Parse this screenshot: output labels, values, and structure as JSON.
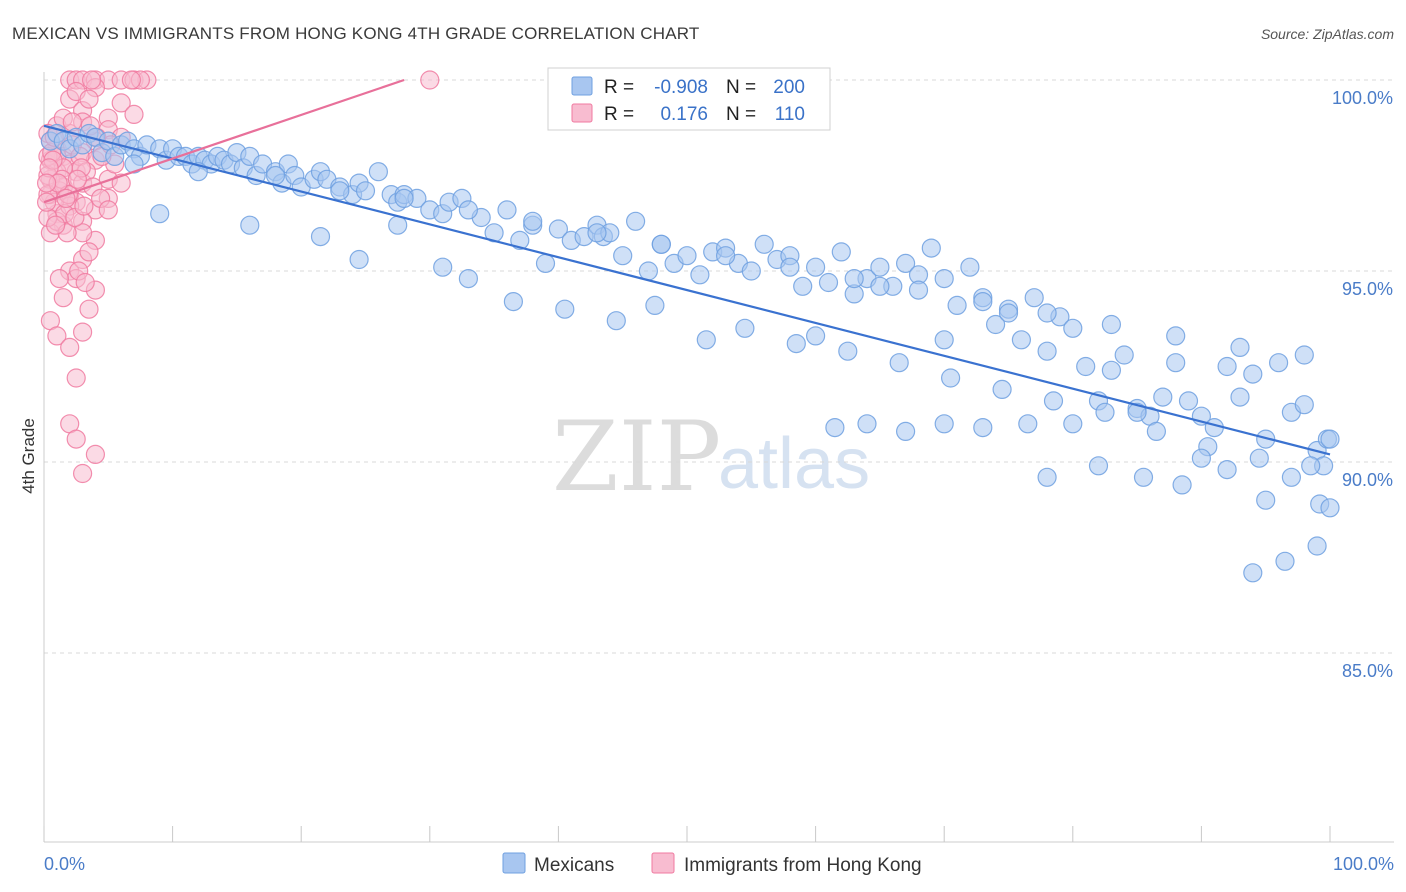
{
  "title": "MEXICAN VS IMMIGRANTS FROM HONG KONG 4TH GRADE CORRELATION CHART",
  "source": "Source: ZipAtlas.com",
  "watermark": {
    "zip": "ZIP",
    "atlas": "atlas"
  },
  "colors": {
    "blue": "#6fa0e0",
    "blue_fill": "#a8c6f0",
    "blue_line": "#3a72d0",
    "pink": "#f07aa0",
    "pink_fill": "#f8bcd0",
    "pink_line": "#e8709a",
    "grid": "#d8d8d8",
    "axis_text": "#4a7cc8"
  },
  "legend_top": {
    "rows": [
      {
        "r_label": "R =",
        "r_value": "-0.908",
        "n_label": "N =",
        "n_value": "200"
      },
      {
        "r_label": "R =",
        "r_value": "0.176",
        "n_label": "N =",
        "n_value": "110"
      }
    ]
  },
  "legend_bottom": {
    "items": [
      "Mexicans",
      "Immigrants from Hong Kong"
    ]
  },
  "chart_data": {
    "type": "scatter",
    "title": "MEXICAN VS IMMIGRANTS FROM HONG KONG 4TH GRADE CORRELATION CHART",
    "xlabel": "",
    "ylabel": "4th Grade",
    "xlim": [
      0,
      100
    ],
    "ylim": [
      80.5,
      100.5
    ],
    "x_tick_labels": [
      "0.0%",
      "100.0%"
    ],
    "y_ticks": [
      100,
      95,
      90,
      85
    ],
    "y_tick_labels": [
      "100.0%",
      "95.0%",
      "90.0%",
      "85.0%"
    ],
    "series": [
      {
        "name": "Mexicans",
        "R": -0.908,
        "N": 200,
        "trend": {
          "x": [
            0,
            100
          ],
          "y": [
            98.8,
            90.2
          ]
        },
        "points": [
          [
            0.5,
            98.4
          ],
          [
            1,
            98.6
          ],
          [
            1.5,
            98.4
          ],
          [
            2,
            98.2
          ],
          [
            2.5,
            98.5
          ],
          [
            3,
            98.3
          ],
          [
            3.5,
            98.6
          ],
          [
            4,
            98.5
          ],
          [
            4.5,
            98.1
          ],
          [
            5,
            98.4
          ],
          [
            5.5,
            98.0
          ],
          [
            6,
            98.3
          ],
          [
            6.5,
            98.4
          ],
          [
            7,
            98.2
          ],
          [
            7.5,
            98.0
          ],
          [
            8,
            98.3
          ],
          [
            9,
            98.2
          ],
          [
            9.5,
            97.9
          ],
          [
            10,
            98.2
          ],
          [
            10.5,
            98.0
          ],
          [
            11,
            98.0
          ],
          [
            11.5,
            97.8
          ],
          [
            12,
            98.0
          ],
          [
            12.5,
            97.9
          ],
          [
            13,
            97.8
          ],
          [
            13.5,
            98.0
          ],
          [
            14,
            97.9
          ],
          [
            14.5,
            97.8
          ],
          [
            15,
            98.1
          ],
          [
            15.5,
            97.7
          ],
          [
            16,
            98.0
          ],
          [
            16.5,
            97.5
          ],
          [
            17,
            97.8
          ],
          [
            18,
            97.6
          ],
          [
            18.5,
            97.3
          ],
          [
            19,
            97.8
          ],
          [
            19.5,
            97.5
          ],
          [
            20,
            97.2
          ],
          [
            21,
            97.4
          ],
          [
            21.5,
            97.6
          ],
          [
            22,
            97.4
          ],
          [
            23,
            97.2
          ],
          [
            24,
            97.0
          ],
          [
            24.5,
            97.3
          ],
          [
            25,
            97.1
          ],
          [
            26,
            97.6
          ],
          [
            27,
            97.0
          ],
          [
            27.5,
            96.8
          ],
          [
            28,
            97.0
          ],
          [
            29,
            96.9
          ],
          [
            30,
            96.6
          ],
          [
            31,
            96.5
          ],
          [
            31.5,
            96.8
          ],
          [
            32.5,
            96.9
          ],
          [
            34,
            96.4
          ],
          [
            35,
            96.0
          ],
          [
            36,
            96.6
          ],
          [
            37,
            95.8
          ],
          [
            38,
            96.2
          ],
          [
            39,
            95.2
          ],
          [
            40,
            96.1
          ],
          [
            41,
            95.8
          ],
          [
            42,
            95.9
          ],
          [
            43,
            96.2
          ],
          [
            43.5,
            95.9
          ],
          [
            44,
            96.0
          ],
          [
            45,
            95.4
          ],
          [
            46,
            96.3
          ],
          [
            47,
            95.0
          ],
          [
            48,
            95.7
          ],
          [
            49,
            95.2
          ],
          [
            50,
            95.4
          ],
          [
            51,
            94.9
          ],
          [
            52,
            95.5
          ],
          [
            53,
            95.6
          ],
          [
            54,
            95.2
          ],
          [
            55,
            95.0
          ],
          [
            56,
            95.7
          ],
          [
            57,
            95.3
          ],
          [
            58,
            95.4
          ],
          [
            59,
            94.6
          ],
          [
            60,
            95.1
          ],
          [
            61,
            94.7
          ],
          [
            62,
            95.5
          ],
          [
            63,
            94.4
          ],
          [
            64,
            94.8
          ],
          [
            65,
            95.1
          ],
          [
            66,
            94.6
          ],
          [
            67,
            95.2
          ],
          [
            68,
            94.9
          ],
          [
            69,
            95.6
          ],
          [
            70,
            94.8
          ],
          [
            71,
            94.1
          ],
          [
            72,
            95.1
          ],
          [
            73,
            94.3
          ],
          [
            74,
            93.6
          ],
          [
            75,
            94.0
          ],
          [
            76,
            93.2
          ],
          [
            77,
            94.3
          ],
          [
            78,
            92.9
          ],
          [
            79,
            93.8
          ],
          [
            80,
            93.5
          ],
          [
            81,
            92.5
          ],
          [
            82,
            91.6
          ],
          [
            83,
            92.4
          ],
          [
            84,
            92.8
          ],
          [
            85,
            91.4
          ],
          [
            86,
            91.2
          ],
          [
            87,
            91.7
          ],
          [
            88,
            92.6
          ],
          [
            89,
            91.6
          ],
          [
            90,
            91.2
          ],
          [
            91,
            90.9
          ],
          [
            92,
            92.5
          ],
          [
            93,
            91.7
          ],
          [
            94,
            92.3
          ],
          [
            95,
            90.6
          ],
          [
            96,
            92.6
          ],
          [
            97,
            91.3
          ],
          [
            98,
            91.5
          ],
          [
            99,
            90.3
          ],
          [
            99.5,
            89.9
          ],
          [
            99.8,
            90.6
          ],
          [
            9,
            96.5
          ],
          [
            16,
            96.2
          ],
          [
            21.5,
            95.9
          ],
          [
            24.5,
            95.3
          ],
          [
            27.5,
            96.2
          ],
          [
            31,
            95.1
          ],
          [
            33,
            94.8
          ],
          [
            36.5,
            94.2
          ],
          [
            40.5,
            94.0
          ],
          [
            44.5,
            93.7
          ],
          [
            47.5,
            94.1
          ],
          [
            51.5,
            93.2
          ],
          [
            54.5,
            93.5
          ],
          [
            58.5,
            93.1
          ],
          [
            62.5,
            92.9
          ],
          [
            66.5,
            92.6
          ],
          [
            70.5,
            92.2
          ],
          [
            74.5,
            91.9
          ],
          [
            78.5,
            91.6
          ],
          [
            82.5,
            91.3
          ],
          [
            86.5,
            90.8
          ],
          [
            90.5,
            90.4
          ],
          [
            94.5,
            90.1
          ],
          [
            98.5,
            89.9
          ],
          [
            7,
            97.8
          ],
          [
            12,
            97.6
          ],
          [
            18,
            97.5
          ],
          [
            23,
            97.1
          ],
          [
            28,
            96.9
          ],
          [
            33,
            96.6
          ],
          [
            38,
            96.3
          ],
          [
            43,
            96.0
          ],
          [
            48,
            95.7
          ],
          [
            53,
            95.4
          ],
          [
            58,
            95.1
          ],
          [
            63,
            94.8
          ],
          [
            68,
            94.5
          ],
          [
            73,
            94.2
          ],
          [
            78,
            93.9
          ],
          [
            83,
            93.6
          ],
          [
            88,
            93.3
          ],
          [
            93,
            93.0
          ],
          [
            98,
            92.8
          ],
          [
            60,
            93.3
          ],
          [
            65,
            94.6
          ],
          [
            70,
            93.2
          ],
          [
            75,
            93.9
          ],
          [
            80,
            91.0
          ],
          [
            85,
            91.3
          ],
          [
            88.5,
            89.4
          ],
          [
            90,
            90.1
          ],
          [
            92,
            89.8
          ],
          [
            95,
            89.0
          ],
          [
            97,
            89.6
          ],
          [
            99.2,
            88.9
          ],
          [
            96.5,
            87.4
          ],
          [
            100,
            90.6
          ],
          [
            94,
            87.1
          ],
          [
            100,
            88.8
          ],
          [
            99,
            87.8
          ],
          [
            82,
            89.9
          ],
          [
            85.5,
            89.6
          ],
          [
            78,
            89.6
          ],
          [
            76.5,
            91.0
          ],
          [
            73,
            90.9
          ],
          [
            70,
            91.0
          ],
          [
            67,
            90.8
          ],
          [
            64,
            91.0
          ],
          [
            61.5,
            90.9
          ]
        ]
      },
      {
        "name": "Immigrants from Hong Kong",
        "R": 0.176,
        "N": 110,
        "trend": {
          "x": [
            0,
            28
          ],
          "y": [
            96.8,
            100.0
          ]
        },
        "points": [
          [
            2,
            100.0
          ],
          [
            2.5,
            100.0
          ],
          [
            3,
            100.0
          ],
          [
            4,
            100.0
          ],
          [
            5,
            100.0
          ],
          [
            6,
            100.0
          ],
          [
            7,
            100.0
          ],
          [
            8,
            100.0
          ],
          [
            2,
            99.5
          ],
          [
            3,
            99.2
          ],
          [
            4,
            99.8
          ],
          [
            5,
            99.0
          ],
          [
            6,
            99.4
          ],
          [
            7,
            99.1
          ],
          [
            1,
            98.8
          ],
          [
            2,
            98.6
          ],
          [
            3,
            98.9
          ],
          [
            4,
            98.4
          ],
          [
            5,
            98.7
          ],
          [
            6,
            98.5
          ],
          [
            1,
            98.2
          ],
          [
            1.5,
            98.0
          ],
          [
            2,
            97.8
          ],
          [
            2.5,
            97.6
          ],
          [
            3,
            98.1
          ],
          [
            4,
            97.9
          ],
          [
            5,
            97.4
          ],
          [
            0.5,
            97.9
          ],
          [
            1,
            97.6
          ],
          [
            1.5,
            97.2
          ],
          [
            2,
            97.0
          ],
          [
            2.5,
            96.8
          ],
          [
            3,
            97.3
          ],
          [
            4,
            96.6
          ],
          [
            5,
            96.9
          ],
          [
            0.5,
            97.0
          ],
          [
            1,
            96.5
          ],
          [
            1.5,
            96.2
          ],
          [
            2,
            96.7
          ],
          [
            3,
            96.3
          ],
          [
            4,
            95.8
          ],
          [
            0.5,
            96.0
          ],
          [
            1,
            96.3
          ],
          [
            2,
            95.0
          ],
          [
            3,
            95.3
          ],
          [
            4,
            94.5
          ],
          [
            1.5,
            94.3
          ],
          [
            2.5,
            94.8
          ],
          [
            3.5,
            94.0
          ],
          [
            0.5,
            93.7
          ],
          [
            1,
            93.3
          ],
          [
            2,
            93.0
          ],
          [
            3,
            93.4
          ],
          [
            2.5,
            92.2
          ],
          [
            2,
            91.0
          ],
          [
            2.5,
            90.6
          ],
          [
            4,
            90.2
          ],
          [
            3,
            89.7
          ],
          [
            0.5,
            98.4
          ],
          [
            1,
            98.0
          ],
          [
            1.5,
            97.7
          ],
          [
            0.5,
            97.4
          ],
          [
            1.2,
            97.1
          ],
          [
            0.8,
            96.8
          ],
          [
            1.6,
            96.5
          ],
          [
            2.2,
            98.3
          ],
          [
            2.8,
            98.0
          ],
          [
            3.3,
            97.6
          ],
          [
            3.8,
            97.2
          ],
          [
            4.4,
            96.9
          ],
          [
            5,
            96.6
          ],
          [
            5.5,
            97.8
          ],
          [
            6,
            97.3
          ],
          [
            3,
            96.0
          ],
          [
            3.5,
            95.5
          ],
          [
            2.5,
            99.7
          ],
          [
            3.5,
            99.5
          ],
          [
            1.5,
            99.0
          ],
          [
            0.3,
            98.6
          ],
          [
            0.3,
            98.0
          ],
          [
            0.3,
            97.5
          ],
          [
            0.3,
            97.0
          ],
          [
            0.3,
            96.4
          ],
          [
            0.6,
            98.1
          ],
          [
            1.8,
            96.0
          ],
          [
            2.7,
            95.0
          ],
          [
            3.2,
            94.7
          ],
          [
            1.2,
            94.8
          ],
          [
            4.5,
            98.0
          ],
          [
            5.2,
            98.3
          ],
          [
            7.5,
            100.0
          ],
          [
            30,
            100.0
          ],
          [
            6.8,
            100.0
          ],
          [
            3.7,
            100.0
          ],
          [
            2.2,
            98.9
          ],
          [
            1.4,
            97.4
          ],
          [
            0.9,
            96.2
          ],
          [
            2.9,
            97.7
          ],
          [
            4.1,
            98.5
          ],
          [
            3.6,
            98.8
          ],
          [
            0.7,
            97.9
          ],
          [
            1.9,
            97.0
          ],
          [
            2.4,
            96.4
          ],
          [
            0.4,
            97.7
          ],
          [
            1.1,
            97.3
          ],
          [
            1.7,
            96.9
          ],
          [
            2.6,
            97.4
          ],
          [
            3.1,
            96.7
          ],
          [
            0.8,
            98.5
          ],
          [
            0.2,
            96.8
          ],
          [
            0.2,
            97.3
          ]
        ]
      }
    ]
  },
  "labels": {
    "y_axis": "4th Grade"
  }
}
